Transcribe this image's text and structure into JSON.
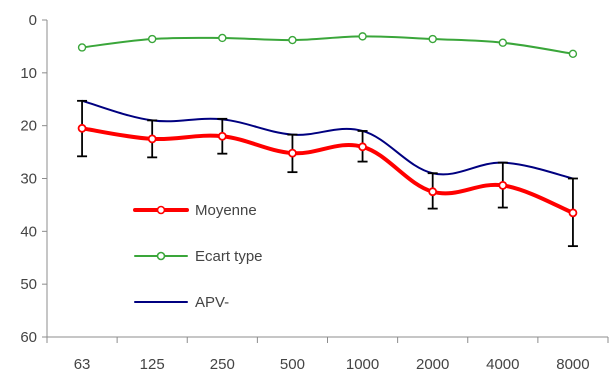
{
  "chart_data": {
    "type": "line",
    "categories": [
      "63",
      "125",
      "250",
      "500",
      "1000",
      "2000",
      "4000",
      "8000"
    ],
    "ylim": [
      0,
      60
    ],
    "y_inverted": true,
    "yticks": [
      "0",
      "10",
      "20",
      "30",
      "40",
      "50",
      "60"
    ],
    "grid": false,
    "legend_position": "bottom-left",
    "series": [
      {
        "name": "Moyenne",
        "color": "#ff0000",
        "markers": true,
        "values": [
          20.5,
          22.5,
          22.0,
          25.2,
          24.0,
          32.5,
          31.3,
          36.5
        ],
        "error_low": [
          15.3,
          19.0,
          18.7,
          21.7,
          21.0,
          29.0,
          27.0,
          30.0
        ],
        "error_high": [
          25.8,
          26.0,
          25.3,
          28.8,
          26.8,
          35.7,
          35.5,
          42.8
        ]
      },
      {
        "name": "Ecart type",
        "color": "#3aa63a",
        "markers": true,
        "values": [
          5.2,
          3.6,
          3.4,
          3.8,
          3.1,
          3.6,
          4.3,
          6.4
        ]
      },
      {
        "name": "APV-",
        "color": "#000080",
        "markers": false,
        "values": [
          15.3,
          19.0,
          18.8,
          21.7,
          21.0,
          29.0,
          27.0,
          30.0
        ]
      }
    ]
  }
}
